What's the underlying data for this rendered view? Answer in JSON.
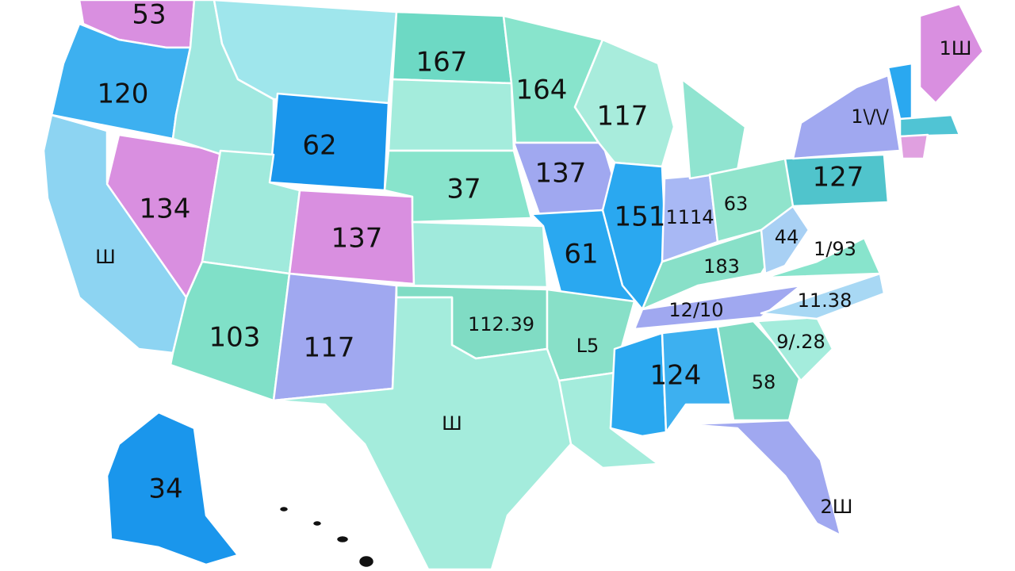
{
  "labels": [
    "53",
    "120",
    "Ш",
    "134",
    "62",
    "137",
    "103",
    "117",
    "167",
    "37",
    "112.39",
    "Ш",
    "164",
    "137",
    "61",
    "L5",
    "117",
    "151",
    "1114",
    "63",
    "183",
    "12/10",
    "124",
    "58",
    "2Ш",
    "9/.28",
    "11.38",
    "1/93",
    "44",
    "127",
    "1\\/\\/",
    "1Ш",
    "34"
  ]
}
